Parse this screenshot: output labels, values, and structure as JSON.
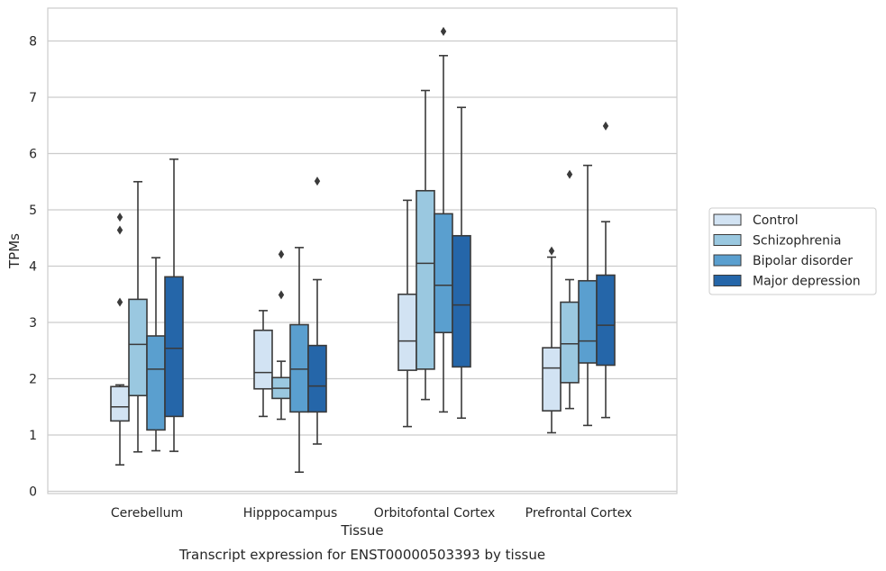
{
  "chart_data": {
    "type": "box",
    "title": "",
    "caption": "Transcript expression for ENST00000503393 by tissue",
    "xlabel": "Tissue",
    "ylabel": "TPMs",
    "ylim": [
      -0.05,
      8.6
    ],
    "yticks": [
      0,
      1,
      2,
      3,
      4,
      5,
      6,
      7,
      8
    ],
    "grid": "horizontal",
    "legend_position": "right",
    "categories": [
      "Cerebellum",
      "Hipppocampus",
      "Orbitofontal Cortex",
      "Prefrontal Cortex"
    ],
    "series": [
      {
        "name": "Control",
        "color": "#d2e3f3",
        "boxes": [
          {
            "whisker_low": 0.47,
            "q1": 1.25,
            "median": 1.5,
            "q3": 1.86,
            "whisker_high": 1.89,
            "outliers": [
              3.36,
              4.64,
              4.87
            ]
          },
          {
            "whisker_low": 1.33,
            "q1": 1.82,
            "median": 2.11,
            "q3": 2.86,
            "whisker_high": 3.21,
            "outliers": []
          },
          {
            "whisker_low": 1.15,
            "q1": 2.15,
            "median": 2.67,
            "q3": 3.5,
            "whisker_high": 5.17,
            "outliers": []
          },
          {
            "whisker_low": 1.04,
            "q1": 1.43,
            "median": 2.19,
            "q3": 2.55,
            "whisker_high": 4.16,
            "outliers": [
              4.27
            ]
          }
        ]
      },
      {
        "name": "Schizophrenia",
        "color": "#9ac8e0",
        "boxes": [
          {
            "whisker_low": 0.7,
            "q1": 1.7,
            "median": 2.61,
            "q3": 3.41,
            "whisker_high": 5.5,
            "outliers": []
          },
          {
            "whisker_low": 1.28,
            "q1": 1.65,
            "median": 1.83,
            "q3": 2.02,
            "whisker_high": 2.31,
            "outliers": [
              3.49,
              4.21
            ]
          },
          {
            "whisker_low": 1.63,
            "q1": 2.17,
            "median": 4.05,
            "q3": 5.34,
            "whisker_high": 7.12,
            "outliers": []
          },
          {
            "whisker_low": 1.47,
            "q1": 1.93,
            "median": 2.62,
            "q3": 3.36,
            "whisker_high": 3.76,
            "outliers": [
              5.63
            ]
          }
        ]
      },
      {
        "name": "Bipolar disorder",
        "color": "#5a9fcf",
        "boxes": [
          {
            "whisker_low": 0.72,
            "q1": 1.09,
            "median": 2.17,
            "q3": 2.76,
            "whisker_high": 4.15,
            "outliers": []
          },
          {
            "whisker_low": 0.34,
            "q1": 1.41,
            "median": 2.17,
            "q3": 2.96,
            "whisker_high": 4.33,
            "outliers": []
          },
          {
            "whisker_low": 1.41,
            "q1": 2.82,
            "median": 3.66,
            "q3": 4.93,
            "whisker_high": 7.74,
            "outliers": [
              8.17
            ]
          },
          {
            "whisker_low": 1.17,
            "q1": 2.28,
            "median": 2.67,
            "q3": 3.74,
            "whisker_high": 5.79,
            "outliers": []
          }
        ]
      },
      {
        "name": "Major depression",
        "color": "#2566a9",
        "boxes": [
          {
            "whisker_low": 0.71,
            "q1": 1.33,
            "median": 2.54,
            "q3": 3.81,
            "whisker_high": 5.9,
            "outliers": []
          },
          {
            "whisker_low": 0.84,
            "q1": 1.41,
            "median": 1.87,
            "q3": 2.59,
            "whisker_high": 3.76,
            "outliers": [
              5.51
            ]
          },
          {
            "whisker_low": 1.3,
            "q1": 2.21,
            "median": 3.31,
            "q3": 4.54,
            "whisker_high": 6.82,
            "outliers": []
          },
          {
            "whisker_low": 1.31,
            "q1": 2.24,
            "median": 2.95,
            "q3": 3.84,
            "whisker_high": 4.79,
            "outliers": [
              6.49
            ]
          }
        ]
      }
    ]
  }
}
